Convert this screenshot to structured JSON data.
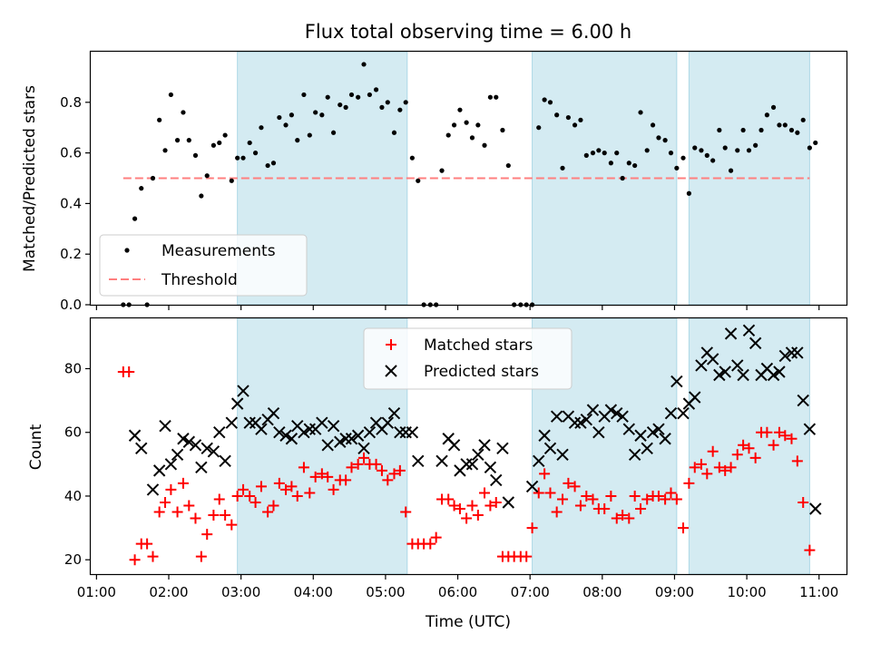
{
  "chart_data": {
    "type": "scatter",
    "title": "Flux total observing time = 6.00 h",
    "xlabel": "Time (UTC)",
    "xlim": [
      0.92,
      11.38
    ],
    "xticks": [
      {
        "v": 1,
        "label": "01:00"
      },
      {
        "v": 2,
        "label": "02:00"
      },
      {
        "v": 3,
        "label": "03:00"
      },
      {
        "v": 4,
        "label": "04:00"
      },
      {
        "v": 5,
        "label": "05:00"
      },
      {
        "v": 6,
        "label": "06:00"
      },
      {
        "v": 7,
        "label": "07:00"
      },
      {
        "v": 8,
        "label": "08:00"
      },
      {
        "v": 9,
        "label": "09:00"
      },
      {
        "v": 10,
        "label": "10:00"
      },
      {
        "v": 11,
        "label": "11:00"
      }
    ],
    "shaded_intervals": [
      [
        2.95,
        5.3
      ],
      [
        7.03,
        9.03
      ],
      [
        9.2,
        10.87
      ]
    ],
    "shade_color": "#add8e6",
    "top": {
      "ylabel": "Matched/Predicted stars",
      "ylim": [
        0,
        1.0
      ],
      "yticks": [
        {
          "v": 0.0,
          "label": "0.0"
        },
        {
          "v": 0.2,
          "label": "0.2"
        },
        {
          "v": 0.4,
          "label": "0.4"
        },
        {
          "v": 0.6,
          "label": "0.6"
        },
        {
          "v": 0.8,
          "label": "0.8"
        }
      ],
      "threshold": {
        "value": 0.5,
        "x": [
          1.37,
          10.87
        ],
        "color": "#ff7f7f"
      },
      "legend": [
        {
          "label": "Measurements",
          "marker": "dot",
          "color": "#000000"
        },
        {
          "label": "Threshold",
          "marker": "dashed",
          "color": "#ff7f7f"
        }
      ],
      "measurements": [
        [
          1.37,
          0.0
        ],
        [
          1.45,
          0.0
        ],
        [
          1.53,
          0.34
        ],
        [
          1.62,
          0.46
        ],
        [
          1.7,
          0.0
        ],
        [
          1.78,
          0.5
        ],
        [
          1.87,
          0.73
        ],
        [
          1.95,
          0.61
        ],
        [
          2.03,
          0.83
        ],
        [
          2.12,
          0.65
        ],
        [
          2.2,
          0.76
        ],
        [
          2.28,
          0.65
        ],
        [
          2.37,
          0.59
        ],
        [
          2.45,
          0.43
        ],
        [
          2.53,
          0.51
        ],
        [
          2.62,
          0.63
        ],
        [
          2.7,
          0.64
        ],
        [
          2.78,
          0.67
        ],
        [
          2.87,
          0.49
        ],
        [
          2.95,
          0.58
        ],
        [
          3.03,
          0.58
        ],
        [
          3.12,
          0.64
        ],
        [
          3.2,
          0.6
        ],
        [
          3.28,
          0.7
        ],
        [
          3.37,
          0.55
        ],
        [
          3.45,
          0.56
        ],
        [
          3.53,
          0.74
        ],
        [
          3.62,
          0.71
        ],
        [
          3.7,
          0.75
        ],
        [
          3.78,
          0.65
        ],
        [
          3.87,
          0.83
        ],
        [
          3.95,
          0.67
        ],
        [
          4.03,
          0.76
        ],
        [
          4.12,
          0.75
        ],
        [
          4.2,
          0.82
        ],
        [
          4.28,
          0.68
        ],
        [
          4.37,
          0.79
        ],
        [
          4.45,
          0.78
        ],
        [
          4.53,
          0.83
        ],
        [
          4.62,
          0.82
        ],
        [
          4.7,
          0.95
        ],
        [
          4.78,
          0.83
        ],
        [
          4.87,
          0.85
        ],
        [
          4.95,
          0.78
        ],
        [
          5.03,
          0.8
        ],
        [
          5.12,
          0.68
        ],
        [
          5.2,
          0.77
        ],
        [
          5.28,
          0.8
        ],
        [
          5.37,
          0.58
        ],
        [
          5.45,
          0.49
        ],
        [
          5.53,
          0.0
        ],
        [
          5.62,
          0.0
        ],
        [
          5.7,
          0.0
        ],
        [
          5.78,
          0.53
        ],
        [
          5.87,
          0.67
        ],
        [
          5.95,
          0.71
        ],
        [
          6.03,
          0.77
        ],
        [
          6.12,
          0.72
        ],
        [
          6.2,
          0.66
        ],
        [
          6.28,
          0.71
        ],
        [
          6.37,
          0.63
        ],
        [
          6.45,
          0.82
        ],
        [
          6.53,
          0.82
        ],
        [
          6.62,
          0.69
        ],
        [
          6.7,
          0.55
        ],
        [
          6.78,
          0.0
        ],
        [
          6.87,
          0.0
        ],
        [
          6.95,
          0.0
        ],
        [
          7.03,
          0.0
        ],
        [
          7.12,
          0.7
        ],
        [
          7.2,
          0.81
        ],
        [
          7.28,
          0.8
        ],
        [
          7.37,
          0.75
        ],
        [
          7.45,
          0.54
        ],
        [
          7.53,
          0.74
        ],
        [
          7.62,
          0.71
        ],
        [
          7.7,
          0.73
        ],
        [
          7.78,
          0.59
        ],
        [
          7.87,
          0.6
        ],
        [
          7.95,
          0.61
        ],
        [
          8.03,
          0.6
        ],
        [
          8.12,
          0.56
        ],
        [
          8.2,
          0.6
        ],
        [
          8.28,
          0.5
        ],
        [
          8.37,
          0.56
        ],
        [
          8.45,
          0.55
        ],
        [
          8.53,
          0.76
        ],
        [
          8.62,
          0.61
        ],
        [
          8.7,
          0.71
        ],
        [
          8.78,
          0.66
        ],
        [
          8.87,
          0.65
        ],
        [
          8.95,
          0.6
        ],
        [
          9.03,
          0.54
        ],
        [
          9.12,
          0.58
        ],
        [
          9.2,
          0.44
        ],
        [
          9.28,
          0.62
        ],
        [
          9.37,
          0.61
        ],
        [
          9.45,
          0.59
        ],
        [
          9.53,
          0.57
        ],
        [
          9.62,
          0.69
        ],
        [
          9.7,
          0.62
        ],
        [
          9.78,
          0.53
        ],
        [
          9.87,
          0.61
        ],
        [
          9.95,
          0.69
        ],
        [
          10.03,
          0.61
        ],
        [
          10.12,
          0.63
        ],
        [
          10.2,
          0.69
        ],
        [
          10.28,
          0.75
        ],
        [
          10.37,
          0.78
        ],
        [
          10.45,
          0.71
        ],
        [
          10.53,
          0.71
        ],
        [
          10.62,
          0.69
        ],
        [
          10.7,
          0.68
        ],
        [
          10.78,
          0.73
        ],
        [
          10.87,
          0.62
        ],
        [
          10.95,
          0.64
        ]
      ]
    },
    "bottom": {
      "ylabel": "Count",
      "ylim": [
        15.5,
        95.8
      ],
      "yticks": [
        {
          "v": 20,
          "label": "20"
        },
        {
          "v": 40,
          "label": "40"
        },
        {
          "v": 60,
          "label": "60"
        },
        {
          "v": 80,
          "label": "80"
        }
      ],
      "legend": [
        {
          "label": "Matched stars",
          "marker": "plus",
          "color": "#ff0000"
        },
        {
          "label": "Predicted stars",
          "marker": "x",
          "color": "#000000"
        }
      ],
      "matched": [
        [
          1.37,
          79
        ],
        [
          1.45,
          79
        ],
        [
          1.53,
          20
        ],
        [
          1.62,
          25
        ],
        [
          1.7,
          25
        ],
        [
          1.78,
          21
        ],
        [
          1.87,
          35
        ],
        [
          1.95,
          38
        ],
        [
          2.03,
          42
        ],
        [
          2.12,
          35
        ],
        [
          2.2,
          44
        ],
        [
          2.28,
          37
        ],
        [
          2.37,
          33
        ],
        [
          2.45,
          21
        ],
        [
          2.53,
          28
        ],
        [
          2.62,
          34
        ],
        [
          2.7,
          39
        ],
        [
          2.78,
          34
        ],
        [
          2.87,
          31
        ],
        [
          2.95,
          40
        ],
        [
          3.03,
          42
        ],
        [
          3.12,
          40
        ],
        [
          3.2,
          38
        ],
        [
          3.28,
          43
        ],
        [
          3.37,
          35
        ],
        [
          3.45,
          37
        ],
        [
          3.53,
          44
        ],
        [
          3.62,
          42
        ],
        [
          3.7,
          43
        ],
        [
          3.78,
          40
        ],
        [
          3.87,
          49
        ],
        [
          3.95,
          41
        ],
        [
          4.03,
          46
        ],
        [
          4.12,
          47
        ],
        [
          4.2,
          46
        ],
        [
          4.28,
          42
        ],
        [
          4.37,
          45
        ],
        [
          4.45,
          45
        ],
        [
          4.53,
          49
        ],
        [
          4.62,
          50
        ],
        [
          4.7,
          52
        ],
        [
          4.78,
          50
        ],
        [
          4.87,
          50
        ],
        [
          4.95,
          48
        ],
        [
          5.03,
          45
        ],
        [
          5.12,
          47
        ],
        [
          5.2,
          48
        ],
        [
          5.28,
          35
        ],
        [
          5.37,
          25
        ],
        [
          5.45,
          25
        ],
        [
          5.53,
          25
        ],
        [
          5.62,
          25
        ],
        [
          5.7,
          27
        ],
        [
          5.78,
          39
        ],
        [
          5.87,
          39
        ],
        [
          5.95,
          37
        ],
        [
          6.03,
          36
        ],
        [
          6.12,
          33
        ],
        [
          6.2,
          37
        ],
        [
          6.28,
          34
        ],
        [
          6.37,
          41
        ],
        [
          6.45,
          37
        ],
        [
          6.53,
          38
        ],
        [
          6.62,
          21
        ],
        [
          6.7,
          21
        ],
        [
          6.78,
          21
        ],
        [
          6.87,
          21
        ],
        [
          6.95,
          21
        ],
        [
          7.03,
          30
        ],
        [
          7.12,
          41
        ],
        [
          7.2,
          47
        ],
        [
          7.28,
          41
        ],
        [
          7.37,
          35
        ],
        [
          7.45,
          39
        ],
        [
          7.53,
          44
        ],
        [
          7.62,
          43
        ],
        [
          7.7,
          37
        ],
        [
          7.78,
          40
        ],
        [
          7.87,
          39
        ],
        [
          7.95,
          36
        ],
        [
          8.03,
          36
        ],
        [
          8.12,
          40
        ],
        [
          8.2,
          33
        ],
        [
          8.28,
          34
        ],
        [
          8.37,
          33
        ],
        [
          8.45,
          40
        ],
        [
          8.53,
          36
        ],
        [
          8.62,
          39
        ],
        [
          8.7,
          40
        ],
        [
          8.78,
          40
        ],
        [
          8.87,
          39
        ],
        [
          8.95,
          41
        ],
        [
          9.03,
          39
        ],
        [
          9.12,
          30
        ],
        [
          9.2,
          44
        ],
        [
          9.28,
          49
        ],
        [
          9.37,
          50
        ],
        [
          9.45,
          47
        ],
        [
          9.53,
          54
        ],
        [
          9.62,
          49
        ],
        [
          9.7,
          48
        ],
        [
          9.78,
          49
        ],
        [
          9.87,
          53
        ],
        [
          9.95,
          56
        ],
        [
          10.03,
          55
        ],
        [
          10.12,
          52
        ],
        [
          10.2,
          60
        ],
        [
          10.28,
          60
        ],
        [
          10.37,
          56
        ],
        [
          10.45,
          60
        ],
        [
          10.53,
          59
        ],
        [
          10.62,
          58
        ],
        [
          10.7,
          51
        ],
        [
          10.78,
          38
        ],
        [
          10.87,
          23
        ]
      ],
      "predicted": [
        [
          1.53,
          59
        ],
        [
          1.62,
          55
        ],
        [
          1.78,
          42
        ],
        [
          1.87,
          48
        ],
        [
          1.95,
          62
        ],
        [
          2.03,
          50
        ],
        [
          2.12,
          53
        ],
        [
          2.2,
          58
        ],
        [
          2.28,
          57
        ],
        [
          2.37,
          56
        ],
        [
          2.45,
          49
        ],
        [
          2.53,
          55
        ],
        [
          2.62,
          54
        ],
        [
          2.7,
          60
        ],
        [
          2.78,
          51
        ],
        [
          2.87,
          63
        ],
        [
          2.95,
          69
        ],
        [
          3.03,
          73
        ],
        [
          3.12,
          63
        ],
        [
          3.2,
          63
        ],
        [
          3.28,
          61
        ],
        [
          3.37,
          64
        ],
        [
          3.45,
          66
        ],
        [
          3.53,
          60
        ],
        [
          3.62,
          59
        ],
        [
          3.7,
          58
        ],
        [
          3.78,
          62
        ],
        [
          3.87,
          60
        ],
        [
          3.95,
          61
        ],
        [
          4.03,
          61
        ],
        [
          4.12,
          63
        ],
        [
          4.2,
          56
        ],
        [
          4.28,
          62
        ],
        [
          4.37,
          57
        ],
        [
          4.45,
          58
        ],
        [
          4.53,
          58
        ],
        [
          4.62,
          59
        ],
        [
          4.7,
          55
        ],
        [
          4.78,
          60
        ],
        [
          4.87,
          63
        ],
        [
          4.95,
          61
        ],
        [
          5.03,
          63
        ],
        [
          5.12,
          66
        ],
        [
          5.2,
          60
        ],
        [
          5.28,
          60
        ],
        [
          5.37,
          60
        ],
        [
          5.45,
          51
        ],
        [
          5.78,
          51
        ],
        [
          5.87,
          58
        ],
        [
          5.95,
          56
        ],
        [
          6.03,
          48
        ],
        [
          6.12,
          50
        ],
        [
          6.2,
          50
        ],
        [
          6.28,
          53
        ],
        [
          6.37,
          56
        ],
        [
          6.45,
          49
        ],
        [
          6.53,
          45
        ],
        [
          6.62,
          55
        ],
        [
          6.7,
          38
        ],
        [
          7.03,
          43
        ],
        [
          7.12,
          51
        ],
        [
          7.2,
          59
        ],
        [
          7.28,
          55
        ],
        [
          7.37,
          65
        ],
        [
          7.45,
          53
        ],
        [
          7.53,
          65
        ],
        [
          7.62,
          63
        ],
        [
          7.7,
          63
        ],
        [
          7.78,
          64
        ],
        [
          7.87,
          67
        ],
        [
          7.95,
          60
        ],
        [
          8.03,
          65
        ],
        [
          8.12,
          67
        ],
        [
          8.2,
          66
        ],
        [
          8.28,
          65
        ],
        [
          8.37,
          61
        ],
        [
          8.45,
          53
        ],
        [
          8.53,
          59
        ],
        [
          8.62,
          55
        ],
        [
          8.7,
          60
        ],
        [
          8.78,
          61
        ],
        [
          8.87,
          58
        ],
        [
          8.95,
          66
        ],
        [
          9.03,
          76
        ],
        [
          9.12,
          66
        ],
        [
          9.2,
          69
        ],
        [
          9.28,
          71
        ],
        [
          9.37,
          81
        ],
        [
          9.45,
          85
        ],
        [
          9.53,
          83
        ],
        [
          9.62,
          78
        ],
        [
          9.7,
          79
        ],
        [
          9.78,
          91
        ],
        [
          9.87,
          81
        ],
        [
          9.95,
          78
        ],
        [
          10.03,
          92
        ],
        [
          10.12,
          88
        ],
        [
          10.2,
          78
        ],
        [
          10.28,
          80
        ],
        [
          10.37,
          78
        ],
        [
          10.45,
          79
        ],
        [
          10.53,
          84
        ],
        [
          10.62,
          85
        ],
        [
          10.7,
          85
        ],
        [
          10.78,
          70
        ],
        [
          10.87,
          61
        ],
        [
          10.95,
          36
        ]
      ]
    }
  }
}
